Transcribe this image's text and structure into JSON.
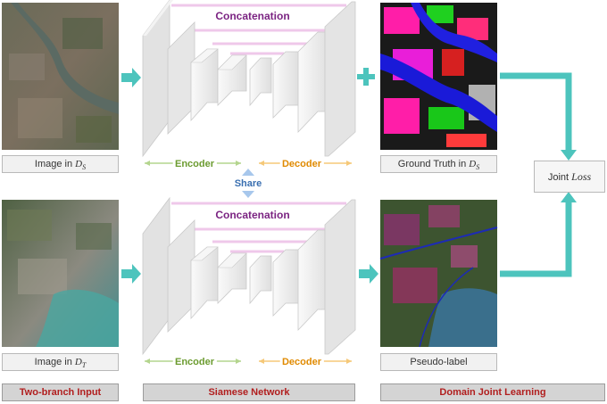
{
  "top": {
    "concat_label": "Concatenation",
    "encoder_label": "Encoder",
    "decoder_label": "Decoder",
    "input_caption": "Image in",
    "input_sub": "S",
    "output_caption": "Ground Truth in",
    "output_sub": "S"
  },
  "share_label": "Share",
  "bottom": {
    "concat_label": "Concatenation",
    "encoder_label": "Encoder",
    "decoder_label": "Decoder",
    "input_caption": "Image in",
    "input_sub": "T",
    "output_caption": "Pseudo-label"
  },
  "loss": {
    "prefix": "Joint",
    "name": "Loss"
  },
  "sections": {
    "input": "Two-branch Input",
    "network": "Siamese Network",
    "learning": "Domain Joint Learning"
  },
  "math_letter": "D",
  "colors": {
    "arrow": "#4dc4bd",
    "concat_text": "#7b2482",
    "concat_bar": "#efc8ea",
    "encoder": "#6b9b2f",
    "encoder_line": "#b4d58e",
    "decoder": "#e08a00",
    "decoder_line": "#f5c878",
    "share": "#3a6fb0",
    "section_text": "#b11e1e"
  }
}
